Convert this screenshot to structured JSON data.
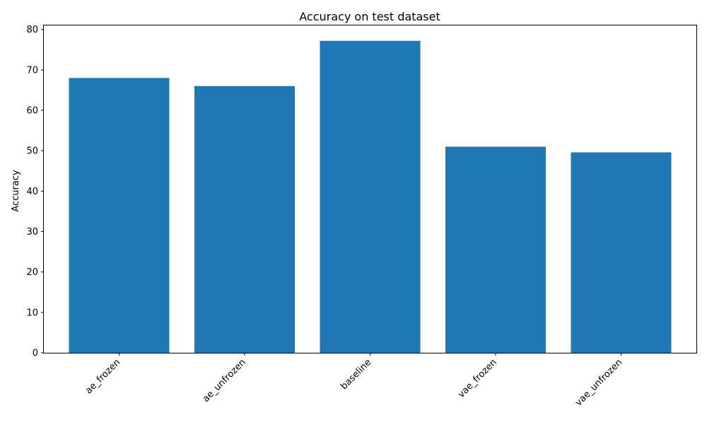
{
  "chart_data": {
    "type": "bar",
    "title": "Accuracy on test dataset",
    "xlabel": "",
    "ylabel": "Accuracy",
    "categories": [
      "ae_frozen",
      "ae_unfrozen",
      "baseline",
      "vae_frozen",
      "vae_unfrozen"
    ],
    "values": [
      68.0,
      66.0,
      77.2,
      51.0,
      49.6
    ],
    "ylim": [
      0,
      81
    ],
    "yticks": [
      0,
      10,
      20,
      30,
      40,
      50,
      60,
      70,
      80
    ],
    "bar_color": "#1f77b4",
    "grid": false,
    "xtick_rotation_deg": 45
  }
}
